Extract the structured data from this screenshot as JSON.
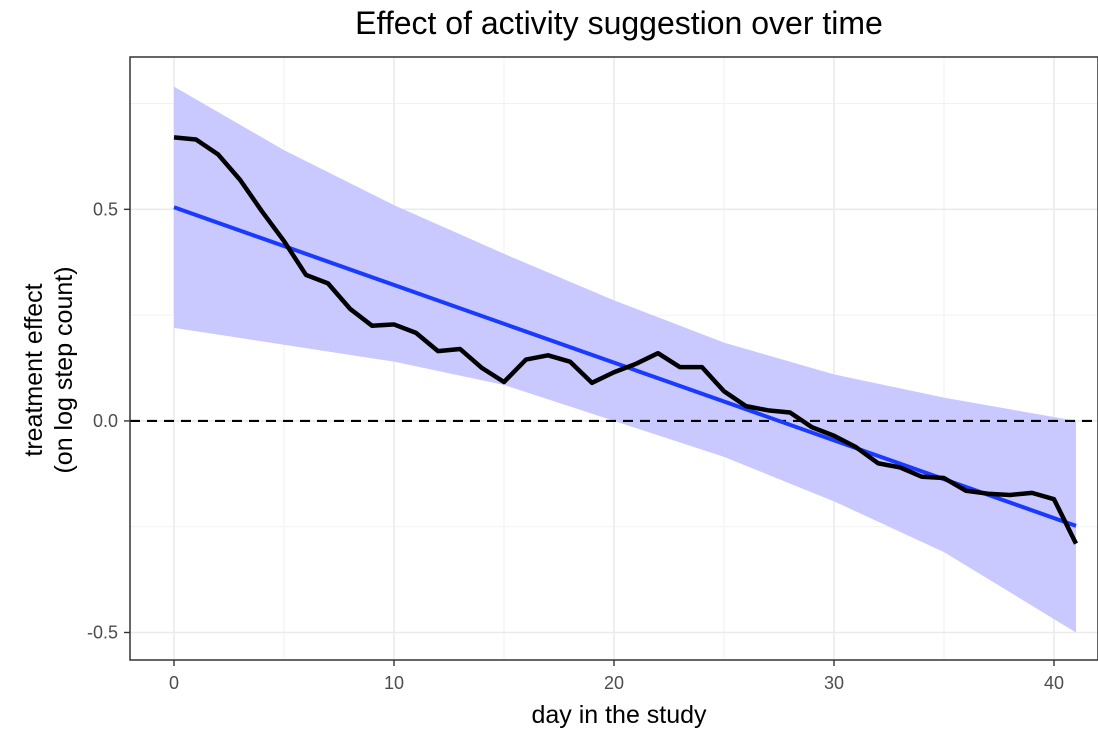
{
  "chart_data": {
    "type": "line",
    "title": "Effect of activity suggestion over time",
    "xlabel": "day in the study",
    "ylabel_lines": [
      "treatment effect",
      "(on log step count)"
    ],
    "xlim": [
      -2,
      42
    ],
    "ylim": [
      -0.565,
      0.86
    ],
    "x_ticks": [
      0,
      10,
      20,
      30,
      40
    ],
    "x_tick_labels": [
      "0",
      "10",
      "20",
      "30",
      "40"
    ],
    "x_minor_ticks": [
      5,
      15,
      25,
      35
    ],
    "y_ticks": [
      -0.5,
      0.0,
      0.5
    ],
    "y_tick_labels": [
      "-0.5",
      "0.0",
      "0.5"
    ],
    "y_minor_ticks": [
      -0.25,
      0.25,
      0.75
    ],
    "grid": true,
    "reference_line": {
      "y": 0,
      "style": "dashed",
      "color": "#000000"
    },
    "series": [
      {
        "kind": "line",
        "color": "#000000",
        "x": [
          0,
          1,
          2,
          3,
          4,
          5,
          6,
          7,
          8,
          9,
          10,
          11,
          12,
          13,
          14,
          15,
          16,
          17,
          18,
          19,
          20,
          21,
          22,
          23,
          24,
          25,
          26,
          27,
          28,
          29,
          30,
          31,
          32,
          33,
          34,
          35,
          36,
          37,
          38,
          39,
          40,
          41
        ],
        "values": [
          0.67,
          0.665,
          0.63,
          0.57,
          0.495,
          0.425,
          0.345,
          0.325,
          0.265,
          0.225,
          0.228,
          0.208,
          0.165,
          0.17,
          0.125,
          0.092,
          0.145,
          0.155,
          0.14,
          0.09,
          0.115,
          0.135,
          0.16,
          0.127,
          0.127,
          0.07,
          0.035,
          0.025,
          0.02,
          -0.015,
          -0.035,
          -0.062,
          -0.1,
          -0.11,
          -0.132,
          -0.135,
          -0.165,
          -0.172,
          -0.175,
          -0.17,
          -0.185,
          -0.29
        ]
      },
      {
        "kind": "fit",
        "color": "#1a3bff",
        "x": [
          0,
          41
        ],
        "values": [
          0.505,
          -0.248
        ],
        "band_color": "#c9c9ff",
        "band_x": [
          0,
          5,
          10,
          15,
          20,
          25,
          30,
          35,
          41
        ],
        "band_upper": [
          0.79,
          0.64,
          0.51,
          0.395,
          0.285,
          0.185,
          0.11,
          0.055,
          0.0
        ],
        "band_lower": [
          0.22,
          0.18,
          0.14,
          0.085,
          0.0,
          -0.085,
          -0.19,
          -0.31,
          -0.5
        ]
      }
    ]
  }
}
